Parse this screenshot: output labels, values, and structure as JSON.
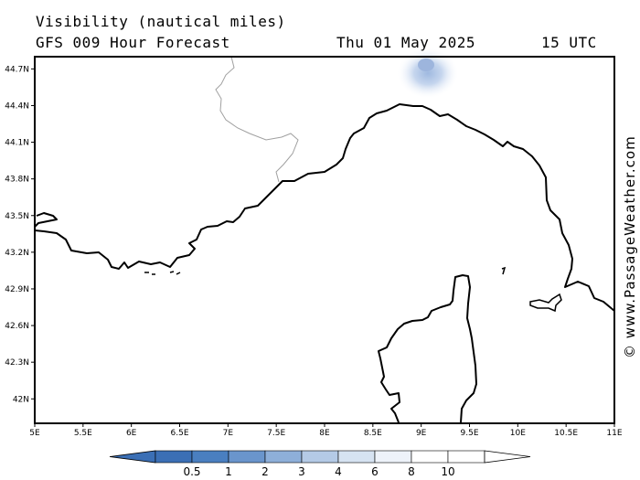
{
  "header": {
    "title": "Visibility (nautical miles)",
    "model": "GFS 009 Hour Forecast",
    "date": "Thu 01 May 2025",
    "time": "15 UTC"
  },
  "map": {
    "lon_range": [
      5,
      11
    ],
    "lat_range": [
      41.8,
      44.8
    ],
    "lon_ticks": [
      "5E",
      "5.5E",
      "6E",
      "6.5E",
      "7E",
      "7.5E",
      "8E",
      "8.5E",
      "9E",
      "9.5E",
      "10E",
      "10.5E",
      "11E"
    ],
    "lat_ticks": [
      "44.7N",
      "44.4N",
      "44.1N",
      "43.8N",
      "43.5N",
      "43.2N",
      "42.9N",
      "42.6N",
      "42.3N",
      "42N"
    ],
    "coastline_color": "#000000",
    "border_color": "#a0a0a0"
  },
  "legend": {
    "values": [
      "0.5",
      "1",
      "2",
      "3",
      "4",
      "6",
      "8",
      "10"
    ],
    "colors": [
      "#3b6fb5",
      "#4a7fc0",
      "#6a95cc",
      "#8eafd9",
      "#b4cae6",
      "#d6e3f2",
      "#eef3fa",
      "#ffffff"
    ]
  },
  "branding": "© www.PassageWeather.com"
}
